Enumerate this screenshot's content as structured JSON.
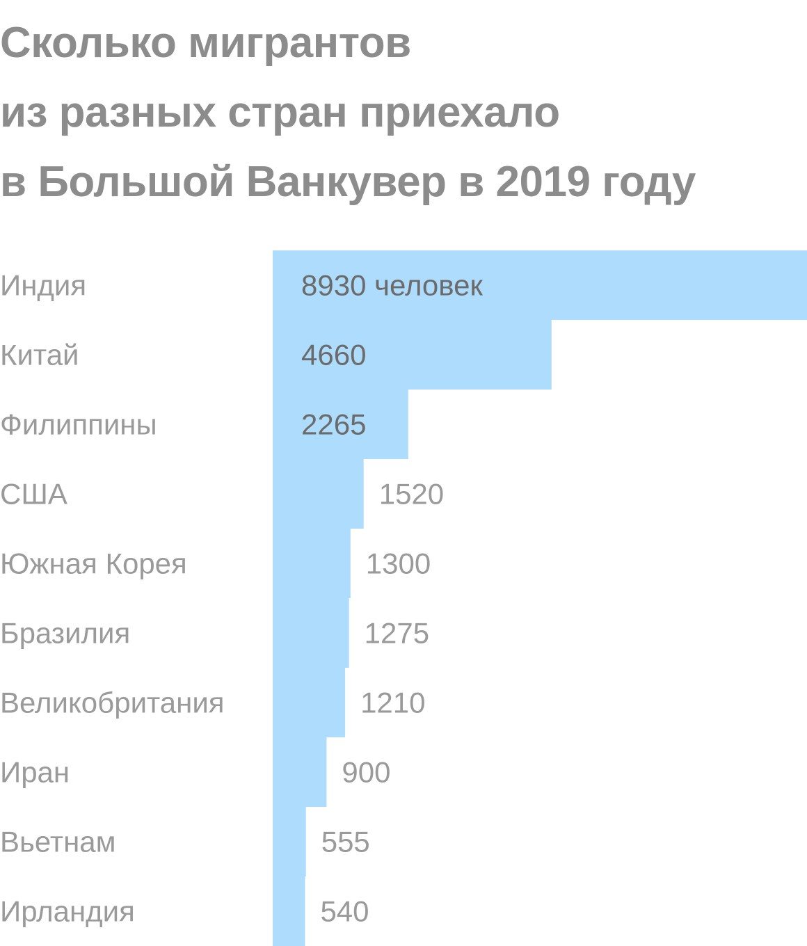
{
  "title_lines": [
    "Сколько мигрантов",
    "из разных стран приехало",
    "в Большой Ванкувер в 2019 году"
  ],
  "colors": {
    "bar": "#addcfd",
    "title": "#8c8c8c",
    "category_label": "#9a9a9a",
    "value_inside": "#6b6b6b",
    "value_outside": "#9a9a9a"
  },
  "chart_data": {
    "type": "bar",
    "orientation": "horizontal",
    "title": "Сколько мигрантов из разных стран приехало в Большой Ванкувер в 2019 году",
    "categories": [
      "Индия",
      "Китай",
      "Филиппины",
      "США",
      "Южная Корея",
      "Бразилия",
      "Великобритания",
      "Иран",
      "Вьетнам",
      "Ирландия"
    ],
    "values": [
      8930,
      4660,
      2265,
      1520,
      1300,
      1275,
      1210,
      900,
      555,
      540
    ],
    "value_labels": [
      "8930 человек",
      "4660",
      "2265",
      "1520",
      "1300",
      "1275",
      "1210",
      "900",
      "555",
      "540"
    ],
    "xlim": [
      0,
      8930
    ],
    "grid": false,
    "legend": "none"
  }
}
